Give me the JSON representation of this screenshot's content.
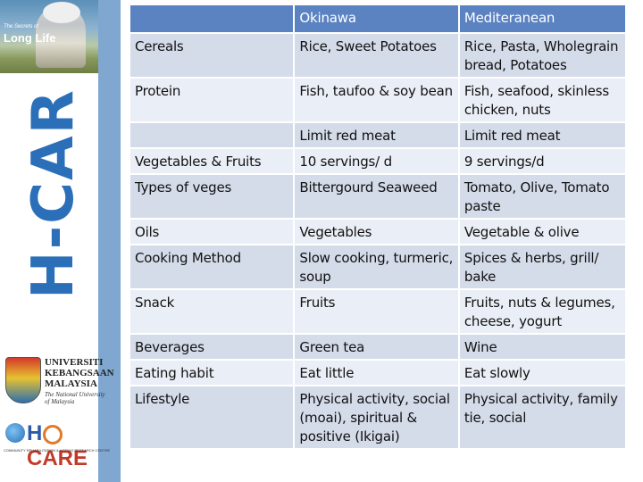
{
  "sidebar": {
    "photo_small_title": "The Secrets of",
    "photo_big_title": "Long Life",
    "vertical_text": "H-CAR",
    "university_name": [
      "UNIVERSITI",
      "KEBANGSAAN",
      "MALAYSIA"
    ],
    "university_tagline": [
      "The National University",
      "of Malaysia"
    ],
    "hcare_logo": {
      "h": "H",
      "care": "CARE"
    },
    "hcare_subtitle": "COMMUNITY REHABILITATION & AGEING RESEARCH CENTRE"
  },
  "table": {
    "headers": [
      "",
      "Okinawa",
      "Mediteranean"
    ],
    "rows": [
      [
        "Cereals",
        "Rice, Sweet Potatoes",
        "Rice, Pasta, Wholegrain bread, Potatoes"
      ],
      [
        "Protein",
        "Fish, taufoo & soy bean",
        "Fish, seafood, skinless chicken, nuts"
      ],
      [
        "",
        "Limit red meat",
        "Limit red meat"
      ],
      [
        "Vegetables & Fruits",
        "10 servings/ d",
        "9 servings/d"
      ],
      [
        "Types of veges",
        "Bittergourd Seaweed",
        "Tomato, Olive, Tomato paste"
      ],
      [
        "Oils",
        "Vegetables",
        "Vegetable & olive"
      ],
      [
        "Cooking Method",
        "Slow cooking, turmeric, soup",
        "Spices & herbs, grill/ bake"
      ],
      [
        "Snack",
        "Fruits",
        "Fruits, nuts & legumes, cheese, yogurt"
      ],
      [
        "Beverages",
        "Green tea",
        "Wine"
      ],
      [
        "Eating habit",
        "Eat little",
        "Eat slowly"
      ],
      [
        "Lifestyle",
        "Physical activity, social (moai), spiritual & positive (Ikigai)",
        "Physical activity, family tie, social"
      ]
    ]
  },
  "colors": {
    "header_bg": "#5b82c1",
    "row_odd": "#d4dbe9",
    "row_even": "#eaeef6",
    "accent_blue": "#2a6fb8"
  }
}
